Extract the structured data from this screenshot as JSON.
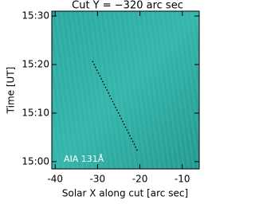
{
  "chart_data": {
    "type": "line",
    "title": "Cut Y = −320 arc sec",
    "x_label": "Solar X along cut [arc sec]",
    "y_label": "Time [UT]",
    "annotation": "AIA 131Å",
    "xlim": [
      -40.8,
      -6
    ],
    "xticks": [
      -40,
      -30,
      -20,
      -10
    ],
    "ylim": [
      898.5,
      931
    ],
    "yticks": [
      {
        "value": 900,
        "label": "15:00"
      },
      {
        "value": 910,
        "label": "15:10"
      },
      {
        "value": 920,
        "label": "15:20"
      },
      {
        "value": 930,
        "label": "15:30"
      }
    ],
    "series": [
      {
        "x": [
          -31.2,
          -20.5
        ],
        "values": [
          920.7,
          902.1
        ],
        "color": "#000000"
      }
    ]
  }
}
